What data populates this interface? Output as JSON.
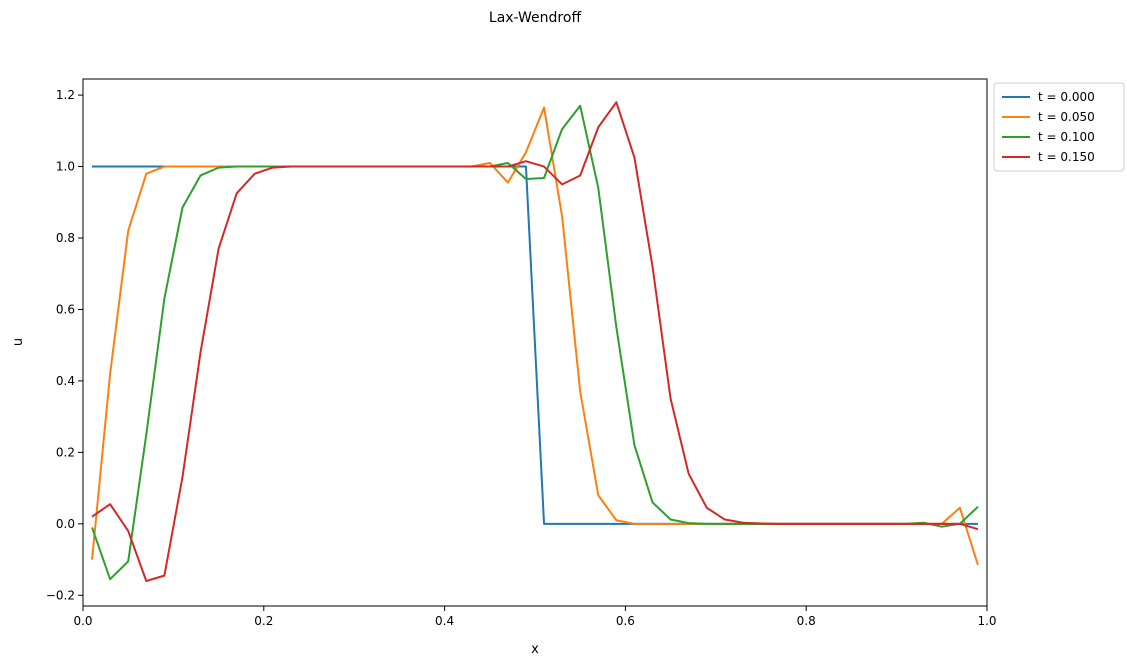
{
  "chart_data": {
    "type": "line",
    "title": "Lax-Wendroff",
    "xlabel": "x",
    "ylabel": "u",
    "xlim": [
      0.0,
      1.0
    ],
    "ylim": [
      -0.23,
      1.245
    ],
    "xticks": [
      "0.0",
      "0.2",
      "0.4",
      "0.6",
      "0.8",
      "1.0"
    ],
    "yticks": [
      "−0.2",
      "0.0",
      "0.2",
      "0.4",
      "0.6",
      "0.8",
      "1.0",
      "1.2"
    ],
    "grid": false,
    "legend_position": "outside-top-right",
    "x": [
      0.01,
      0.03,
      0.05,
      0.07,
      0.09,
      0.11,
      0.13,
      0.15,
      0.17,
      0.19,
      0.21,
      0.23,
      0.25,
      0.27,
      0.29,
      0.31,
      0.33,
      0.35,
      0.37,
      0.39,
      0.41,
      0.43,
      0.45,
      0.47,
      0.49,
      0.51,
      0.53,
      0.55,
      0.57,
      0.59,
      0.61,
      0.63,
      0.65,
      0.67,
      0.69,
      0.71,
      0.73,
      0.75,
      0.77,
      0.79,
      0.81,
      0.83,
      0.85,
      0.87,
      0.89,
      0.91,
      0.93,
      0.95,
      0.97,
      0.99
    ],
    "series": [
      {
        "name": "t = 0.000",
        "color": "#1f77b4",
        "values": [
          1,
          1,
          1,
          1,
          1,
          1,
          1,
          1,
          1,
          1,
          1,
          1,
          1,
          1,
          1,
          1,
          1,
          1,
          1,
          1,
          1,
          1,
          1,
          1,
          1,
          0,
          0,
          0,
          0,
          0,
          0,
          0,
          0,
          0,
          0,
          0,
          0,
          0,
          0,
          0,
          0,
          0,
          0,
          0,
          0,
          0,
          0,
          0,
          0,
          0
        ]
      },
      {
        "name": "t = 0.050",
        "color": "#ff7f0e",
        "values": [
          -0.1,
          0.42,
          0.82,
          0.98,
          1.0,
          1.0,
          1.0,
          1.0,
          1.0,
          1.0,
          1.0,
          1.0,
          1.0,
          1.0,
          1.0,
          1.0,
          1.0,
          1.0,
          1.0,
          1.0,
          1.0,
          1.0,
          1.01,
          0.955,
          1.04,
          1.165,
          0.86,
          0.37,
          0.08,
          0.01,
          0.0,
          0.0,
          0.0,
          0.0,
          0.0,
          0.0,
          0.0,
          0.0,
          0.0,
          0.0,
          0.0,
          0.0,
          0.0,
          0.0,
          0.0,
          0.0,
          0.0,
          0.0,
          0.045,
          -0.115
        ]
      },
      {
        "name": "t = 0.100",
        "color": "#2ca02c",
        "values": [
          -0.01,
          -0.155,
          -0.105,
          0.25,
          0.63,
          0.885,
          0.975,
          0.997,
          1.0,
          1.0,
          1.0,
          1.0,
          1.0,
          1.0,
          1.0,
          1.0,
          1.0,
          1.0,
          1.0,
          1.0,
          1.0,
          1.0,
          1.0,
          1.01,
          0.965,
          0.968,
          1.105,
          1.17,
          0.94,
          0.55,
          0.22,
          0.06,
          0.012,
          0.002,
          0.0,
          0.0,
          0.0,
          0.0,
          0.0,
          0.0,
          0.0,
          0.0,
          0.0,
          0.0,
          0.0,
          0.0,
          0.003,
          -0.008,
          0.0,
          0.048
        ]
      },
      {
        "name": "t = 0.150",
        "color": "#d62728",
        "values": [
          0.02,
          0.055,
          -0.02,
          -0.16,
          -0.145,
          0.13,
          0.48,
          0.77,
          0.925,
          0.98,
          0.997,
          1.0,
          1.0,
          1.0,
          1.0,
          1.0,
          1.0,
          1.0,
          1.0,
          1.0,
          1.0,
          1.0,
          1.0,
          1.0,
          1.015,
          1.0,
          0.95,
          0.975,
          1.11,
          1.18,
          1.025,
          0.72,
          0.35,
          0.14,
          0.045,
          0.012,
          0.003,
          0.001,
          0.0,
          0.0,
          0.0,
          0.0,
          0.0,
          0.0,
          0.0,
          0.0,
          0.0,
          0.0,
          0.0,
          -0.015
        ]
      }
    ]
  }
}
